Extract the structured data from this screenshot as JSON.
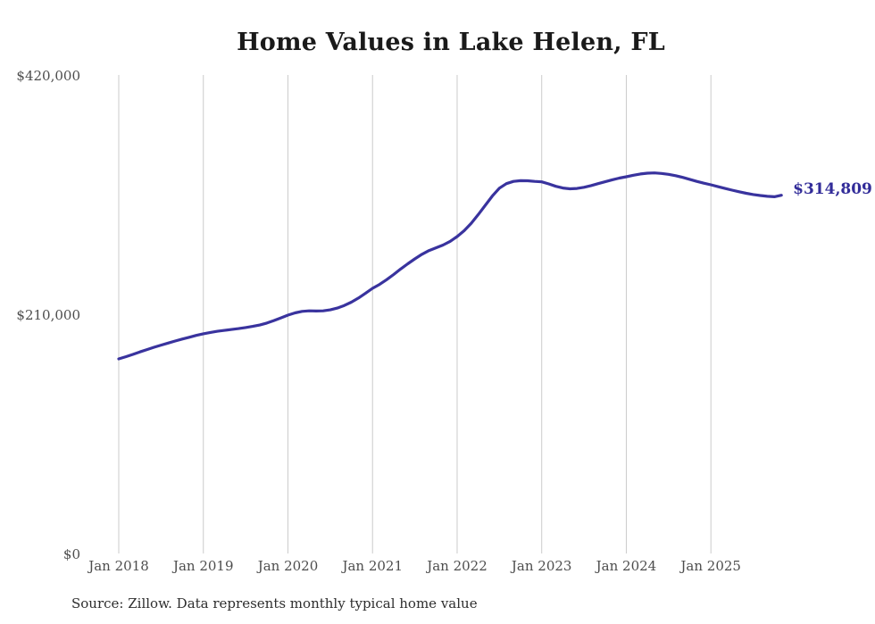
{
  "chart": {
    "title": "Home Values in Lake Helen, FL",
    "end_label": "$314,809",
    "source_note": "Source: Zillow. Data represents monthly typical home value",
    "line_color": "#39339e",
    "end_label_color": "#322c99",
    "grid_color": "#cbcbcb",
    "tick_color": "#4d4d4d"
  },
  "chart_data": {
    "type": "line",
    "title": "Home Values in Lake Helen, FL",
    "unit": "USD",
    "frequency": "monthly",
    "x_start": "Jan 2018",
    "x_end": "Nov 2025",
    "x_ticks": [
      "Jan 2018",
      "Jan 2019",
      "Jan 2020",
      "Jan 2021",
      "Jan 2022",
      "Jan 2023",
      "Jan 2024",
      "Jan 2025"
    ],
    "y_ticks": [
      {
        "label": "$420,000",
        "value": 420000
      },
      {
        "label": "$210,000",
        "value": 210000
      },
      {
        "label": "$0",
        "value": 0
      }
    ],
    "ylim": [
      0,
      420000
    ],
    "grid": "vertical-only",
    "legend": "none",
    "annotation": {
      "text": "$314,809",
      "attached_to": "last-point"
    },
    "series": [
      {
        "name": "Typical home value",
        "values": [
          171200,
          173100,
          175100,
          177300,
          179400,
          181400,
          183300,
          185100,
          186900,
          188600,
          190200,
          191800,
          193200,
          194400,
          195400,
          196200,
          197000,
          197800,
          198700,
          199700,
          200900,
          202600,
          204800,
          207200,
          209600,
          211600,
          212900,
          213400,
          213200,
          213400,
          214200,
          215800,
          218100,
          221000,
          224600,
          228700,
          233100,
          236600,
          240700,
          245300,
          250100,
          254700,
          259000,
          263000,
          266300,
          268700,
          271100,
          274300,
          278600,
          283700,
          290200,
          297900,
          306100,
          314100,
          321000,
          325000,
          327000,
          327600,
          327500,
          327000,
          326600,
          324800,
          322700,
          321200,
          320500,
          320800,
          321800,
          323300,
          325000,
          326700,
          328400,
          329900,
          331100,
          332400,
          333500,
          334200,
          334400,
          334000,
          333200,
          332000,
          330500,
          328800,
          327000,
          325400,
          324000,
          322400,
          320800,
          319300,
          317900,
          316600,
          315500,
          314600,
          313900,
          313500,
          314809
        ]
      }
    ]
  }
}
